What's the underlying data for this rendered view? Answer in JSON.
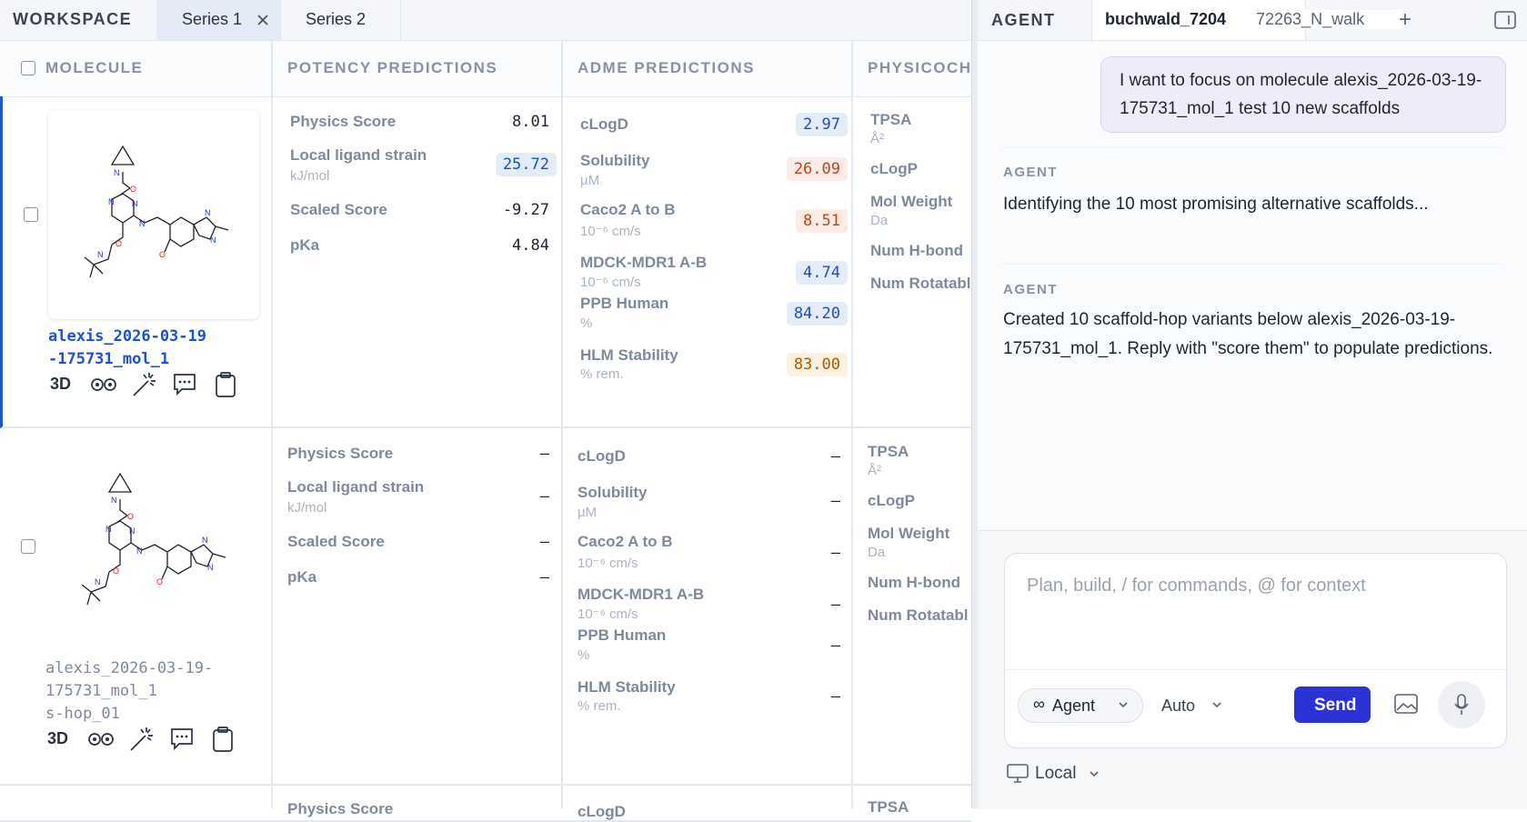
{
  "workspace": {
    "label": "WORKSPACE",
    "tabs": [
      {
        "label": "Series 1",
        "active": true
      },
      {
        "label": "Series 2",
        "active": false
      }
    ]
  },
  "columns": [
    "MOLECULE",
    "POTENCY PREDICTIONS",
    "ADME PREDICTIONS",
    "PHYSICOCH"
  ],
  "action_3d": "3D",
  "rows": [
    {
      "name_lines": [
        "alexis_2026-03-19",
        "-175731_mol_1"
      ],
      "selected": true,
      "potency": [
        {
          "label": "Physics Score",
          "value": "8.01"
        },
        {
          "label": "Local ligand strain",
          "unit": "kJ/mol",
          "value": "25.72",
          "tone": "blue"
        },
        {
          "label": "Scaled Score",
          "value": "-9.27"
        },
        {
          "label": "pKa",
          "value": "4.84"
        }
      ],
      "adme": [
        {
          "label": "cLogD",
          "value": "2.97",
          "tone": "blue"
        },
        {
          "label": "Solubility",
          "unit": "µM",
          "value": "26.09",
          "tone": "red"
        },
        {
          "label": "Caco2 A to B",
          "unit": "10⁻⁶ cm/s",
          "value": "8.51",
          "tone": "red"
        },
        {
          "label": "MDCK-MDR1 A-B",
          "unit": "10⁻⁶ cm/s",
          "value": "4.74",
          "tone": "blue"
        },
        {
          "label": "PPB Human",
          "unit": "%",
          "value": "84.20",
          "tone": "blue"
        },
        {
          "label": "HLM Stability",
          "unit": "% rem.",
          "value": "83.00",
          "tone": "orange"
        }
      ],
      "physchem": [
        {
          "label": "TPSA",
          "unit": "Å²"
        },
        {
          "label": "cLogP"
        },
        {
          "label": "Mol Weight",
          "unit": "Da"
        },
        {
          "label": "Num H-bond"
        },
        {
          "label": "Num Rotatabl"
        }
      ]
    },
    {
      "name_lines": [
        "alexis_2026-03-19-",
        "175731_mol_1",
        "s-hop_01"
      ],
      "selected": false,
      "potency": [
        {
          "label": "Physics Score",
          "value": "–"
        },
        {
          "label": "Local ligand strain",
          "unit": "kJ/mol",
          "value": "–"
        },
        {
          "label": "Scaled Score",
          "value": "–"
        },
        {
          "label": "pKa",
          "value": "–"
        }
      ],
      "adme": [
        {
          "label": "cLogD",
          "value": "–"
        },
        {
          "label": "Solubility",
          "unit": "µM",
          "value": "–"
        },
        {
          "label": "Caco2 A to B",
          "unit": "10⁻⁶ cm/s",
          "value": "–"
        },
        {
          "label": "MDCK-MDR1 A-B",
          "unit": "10⁻⁶ cm/s",
          "value": "–"
        },
        {
          "label": "PPB Human",
          "unit": "%",
          "value": "–"
        },
        {
          "label": "HLM Stability",
          "unit": "% rem.",
          "value": "–"
        }
      ],
      "physchem": [
        {
          "label": "TPSA",
          "unit": "Å²"
        },
        {
          "label": "cLogP"
        },
        {
          "label": "Mol Weight",
          "unit": "Da"
        },
        {
          "label": "Num H-bond"
        },
        {
          "label": "Num Rotatabl"
        }
      ]
    },
    {
      "potency": [
        {
          "label": "Physics Score"
        }
      ],
      "adme": [
        {
          "label": "cLogD"
        }
      ],
      "physchem": [
        {
          "label": "TPSA"
        }
      ]
    }
  ],
  "agent_panel": {
    "header": "AGENT",
    "tabs": [
      "buchwald_7204",
      "72263_N_walk"
    ],
    "new_tab": "+",
    "messages": [
      {
        "role": "user",
        "text": "I want to focus on molecule alexis_2026-03-19-175731_mol_1 test 10 new scaffolds"
      },
      {
        "role": "agent",
        "author": "AGENT",
        "text": "Identifying the 10 most promising alternative scaffolds..."
      },
      {
        "role": "agent",
        "author": "AGENT",
        "text": "Created 10 scaffold-hop variants below alexis_2026-03-19-175731_mol_1. Reply with \"score them\" to populate predictions."
      }
    ],
    "input_placeholder": "Plan, build, / for commands, @ for context",
    "mode": "Agent",
    "model": "Auto",
    "send": "Send",
    "environment": "Local"
  }
}
